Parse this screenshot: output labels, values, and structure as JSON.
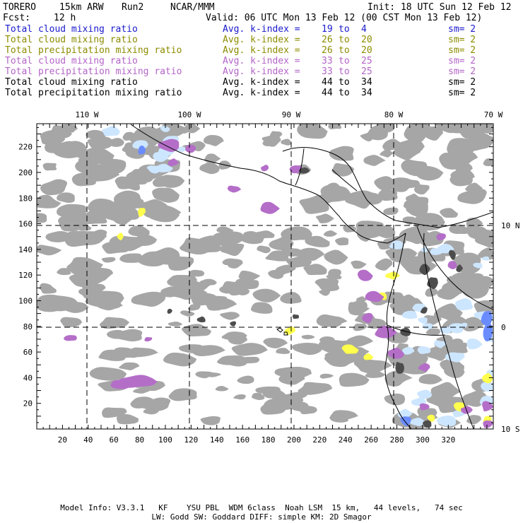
{
  "header": {
    "model": "TORERO",
    "resolution": "15km ARW",
    "run": "Run2",
    "center": "NCAR/MMM",
    "init": "Init: 18 UTC Sun 12 Feb 12",
    "fcst_label": "Fcst:",
    "fcst_value": "12 h",
    "valid": "Valid: 06 UTC Mon 13 Feb 12 (00 CST Mon 13 Feb 12)"
  },
  "fields": [
    {
      "name": "Total cloud mixing ratio",
      "kindex": "Avg. k-index =",
      "from": "19",
      "to_word": "to",
      "to": "4",
      "sm": "sm= 2",
      "color": "#1a1acc",
      "kcolor": "#1a1acc"
    },
    {
      "name": "Total cloud mixing ratio",
      "kindex": "Avg. k-index =",
      "from": "26",
      "to_word": "to",
      "to": "20",
      "sm": "sm= 2",
      "color": "#8c8c00",
      "kcolor": "#8c8c00"
    },
    {
      "name": "Total precipitation mixing ratio",
      "kindex": "Avg. k-index =",
      "from": "26",
      "to_word": "to",
      "to": "20",
      "sm": "sm= 2",
      "color": "#8c8c00",
      "kcolor": "#8c8c00"
    },
    {
      "name": "Total cloud mixing ratio",
      "kindex": "Avg. k-index =",
      "from": "33",
      "to_word": "to",
      "to": "25",
      "sm": "sm= 2",
      "color": "#b364c8",
      "kcolor": "#b364c8"
    },
    {
      "name": "Total precipitation mixing ratio",
      "kindex": "Avg. k-index =",
      "from": "33",
      "to_word": "to",
      "to": "25",
      "sm": "sm= 2",
      "color": "#b364c8",
      "kcolor": "#b364c8"
    },
    {
      "name": "Total cloud mixing ratio",
      "kindex": "Avg. k-index =",
      "from": "44",
      "to_word": "to",
      "to": "34",
      "sm": "sm= 2",
      "color": "#000000",
      "kcolor": "#000000"
    },
    {
      "name": "Total precipitation mixing ratio",
      "kindex": "Avg. k-index =",
      "from": "44",
      "to_word": "to",
      "to": "34",
      "sm": "sm= 2",
      "color": "#000000",
      "kcolor": "#000000"
    }
  ],
  "map": {
    "lon_labels": [
      "110 W",
      "100 W",
      "90 W",
      "80 W",
      "70 W"
    ],
    "lat_labels": [
      "10 N",
      "0",
      "10 S"
    ],
    "y_ticks": [
      "20",
      "40",
      "60",
      "80",
      "100",
      "120",
      "140",
      "160",
      "180",
      "200",
      "220"
    ],
    "x_ticks": [
      "20",
      "40",
      "60",
      "80",
      "100",
      "120",
      "140",
      "160",
      "180",
      "200",
      "220",
      "240",
      "260",
      "280",
      "300",
      "320"
    ],
    "colors": {
      "gray": "#a6a6a6",
      "dark": "#4d4d4d",
      "purple": "#b46ec8",
      "yellow": "#ffff4d",
      "lightblue": "#cde6ff",
      "blue": "#6a8cff"
    }
  },
  "footer": {
    "line1": "Model Info: V3.3.1   KF    YSU PBL  WDM 6class  Noah LSM  15 km,   44 levels,   74 sec",
    "line2": "LW: Godd SW: Goddard DIFF: simple KM: 2D Smagor"
  }
}
